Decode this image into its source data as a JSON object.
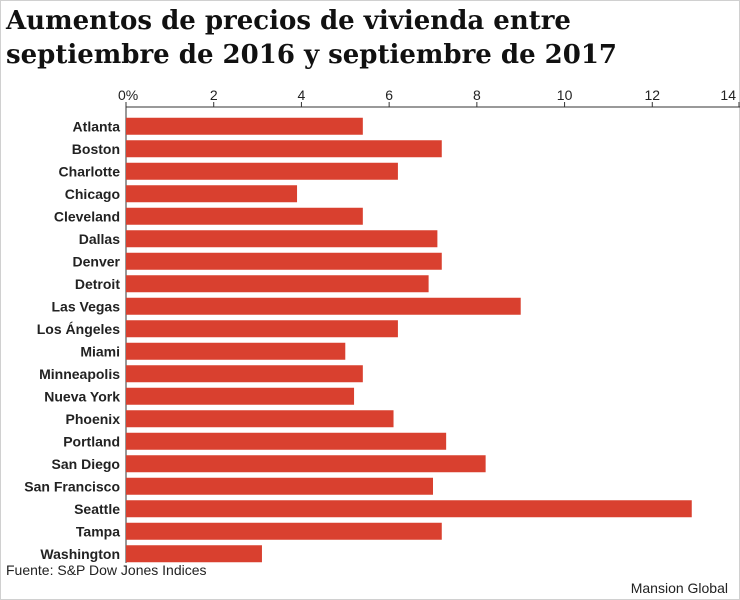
{
  "title": "Aumentos de precios de vivienda entre septiembre de 2016 y septiembre de 2017",
  "source": "Fuente: S&P Dow Jones Indices",
  "brand": "Mansion Global",
  "colors": {
    "bar": "#d9402f",
    "axis": "#333333",
    "grid": "#dddddd"
  },
  "chart_data": {
    "type": "bar",
    "orientation": "horizontal",
    "title": "Aumentos de precios de vivienda entre septiembre de 2016 y septiembre de 2017",
    "xlim": [
      0,
      14
    ],
    "tick_values": [
      0,
      2,
      4,
      6,
      8,
      10,
      12,
      14
    ],
    "tick_labels": [
      "0%",
      "2",
      "4",
      "6",
      "8",
      "10",
      "12",
      "14"
    ],
    "grid": false,
    "categories": [
      "Atlanta",
      "Boston",
      "Charlotte",
      "Chicago",
      "Cleveland",
      "Dallas",
      "Denver",
      "Detroit",
      "Las Vegas",
      "Los Ángeles",
      "Miami",
      "Minneapolis",
      "Nueva York",
      "Phoenix",
      "Portland",
      "San Diego",
      "San Francisco",
      "Seattle",
      "Tampa",
      "Washington"
    ],
    "values": [
      5.4,
      7.2,
      6.2,
      3.9,
      5.4,
      7.1,
      7.2,
      6.9,
      9.0,
      6.2,
      5.0,
      5.4,
      5.2,
      6.1,
      7.3,
      8.2,
      7.0,
      12.9,
      7.2,
      3.1
    ]
  }
}
